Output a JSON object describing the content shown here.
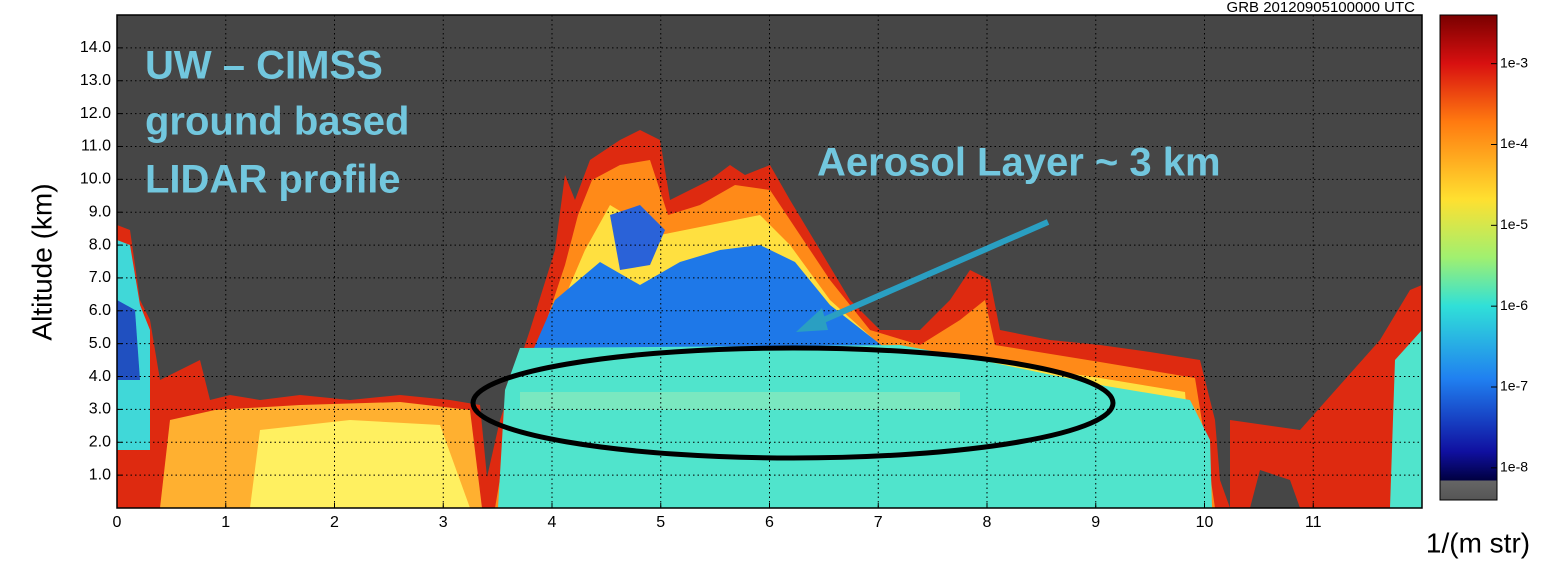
{
  "chart_data": {
    "type": "lidar-curtain",
    "subtitle": "GRB  20120905100000  UTC",
    "y_label": "Altitude (km)",
    "colorbar_label": "1/(m str)",
    "annotations": [
      "UW – CIMSS",
      "ground based",
      "LIDAR profile",
      "Aerosol Layer ~ 3 km"
    ],
    "xlim": [
      0,
      12
    ],
    "xticks": [
      0,
      1,
      2,
      3,
      4,
      5,
      6,
      7,
      8,
      9,
      10,
      11
    ],
    "ylim": [
      0,
      15
    ],
    "yticks": [
      {
        "value": 1,
        "label": "1.0"
      },
      {
        "value": 2,
        "label": "2.0"
      },
      {
        "value": 3,
        "label": "3.0"
      },
      {
        "value": 4,
        "label": "4.0"
      },
      {
        "value": 5,
        "label": "5.0"
      },
      {
        "value": 6,
        "label": "6.0"
      },
      {
        "value": 7,
        "label": "7.0"
      },
      {
        "value": 8,
        "label": "8.0"
      },
      {
        "value": 9,
        "label": "9.0"
      },
      {
        "value": 10,
        "label": "10.0"
      },
      {
        "value": 11,
        "label": "11.0"
      },
      {
        "value": 12,
        "label": "12.0"
      },
      {
        "value": 13,
        "label": "13.0"
      },
      {
        "value": 14,
        "label": "14.0"
      }
    ],
    "grid": true,
    "colorbar": {
      "log": true,
      "lim": [
        4e-09,
        0.004
      ],
      "ticks": [
        {
          "value": 0.001,
          "label": "1e-3"
        },
        {
          "value": 0.0001,
          "label": "1e-4"
        },
        {
          "value": 1e-05,
          "label": "1e-5"
        },
        {
          "value": 1e-06,
          "label": "1e-6"
        },
        {
          "value": 1e-07,
          "label": "1e-7"
        },
        {
          "value": 1e-08,
          "label": "1e-8"
        }
      ]
    }
  }
}
